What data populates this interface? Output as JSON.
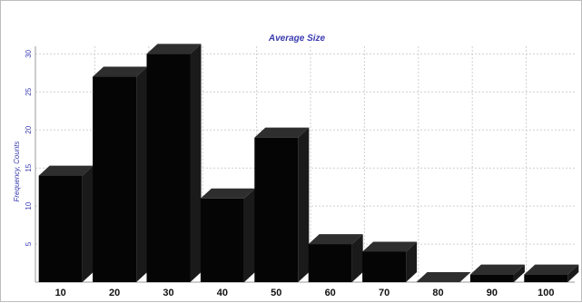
{
  "chart_data": {
    "type": "bar",
    "title": "Average Size",
    "xlabel": "",
    "ylabel": "Frequency, Counts",
    "categories": [
      "10",
      "20",
      "30",
      "40",
      "50",
      "60",
      "70",
      "80",
      "90",
      "100"
    ],
    "values": [
      14,
      27,
      30,
      11,
      19,
      5,
      4,
      0,
      1,
      1
    ],
    "ylim": [
      0,
      31
    ],
    "yticks": [
      5,
      10,
      15,
      20,
      25,
      30
    ],
    "grid": true,
    "bar_style": "3d",
    "colors": {
      "bar_front": "#050505",
      "bar_top": "#2e2e2e",
      "bar_side": "#1a1a1a",
      "text_accent": "#3a3ab0"
    }
  }
}
